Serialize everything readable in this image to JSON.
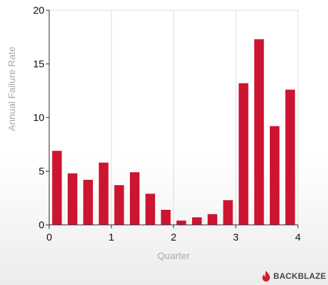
{
  "chart_data": {
    "type": "bar",
    "xlabel": "Quarter",
    "ylabel": "Annual Failure Rate",
    "xlim": [
      0,
      4
    ],
    "ylim": [
      0,
      20
    ],
    "x_ticks": [
      "0",
      "1",
      "2",
      "3",
      "4"
    ],
    "y_ticks": [
      "0",
      "5",
      "10",
      "15",
      "20"
    ],
    "grid": "vertical",
    "bar_color": "#cc1530",
    "x": [
      0.125,
      0.375,
      0.625,
      0.875,
      1.125,
      1.375,
      1.625,
      1.875,
      2.125,
      2.375,
      2.625,
      2.875,
      3.125,
      3.375,
      3.625,
      3.875
    ],
    "values": [
      6.9,
      4.8,
      4.2,
      5.8,
      3.7,
      4.9,
      2.9,
      1.4,
      0.4,
      0.7,
      1.0,
      2.3,
      13.2,
      17.3,
      9.2,
      12.6
    ]
  },
  "branding": {
    "logo_text": "BACKBLAZE",
    "logo_icon": "flame-icon",
    "logo_color": "#d0202e"
  }
}
